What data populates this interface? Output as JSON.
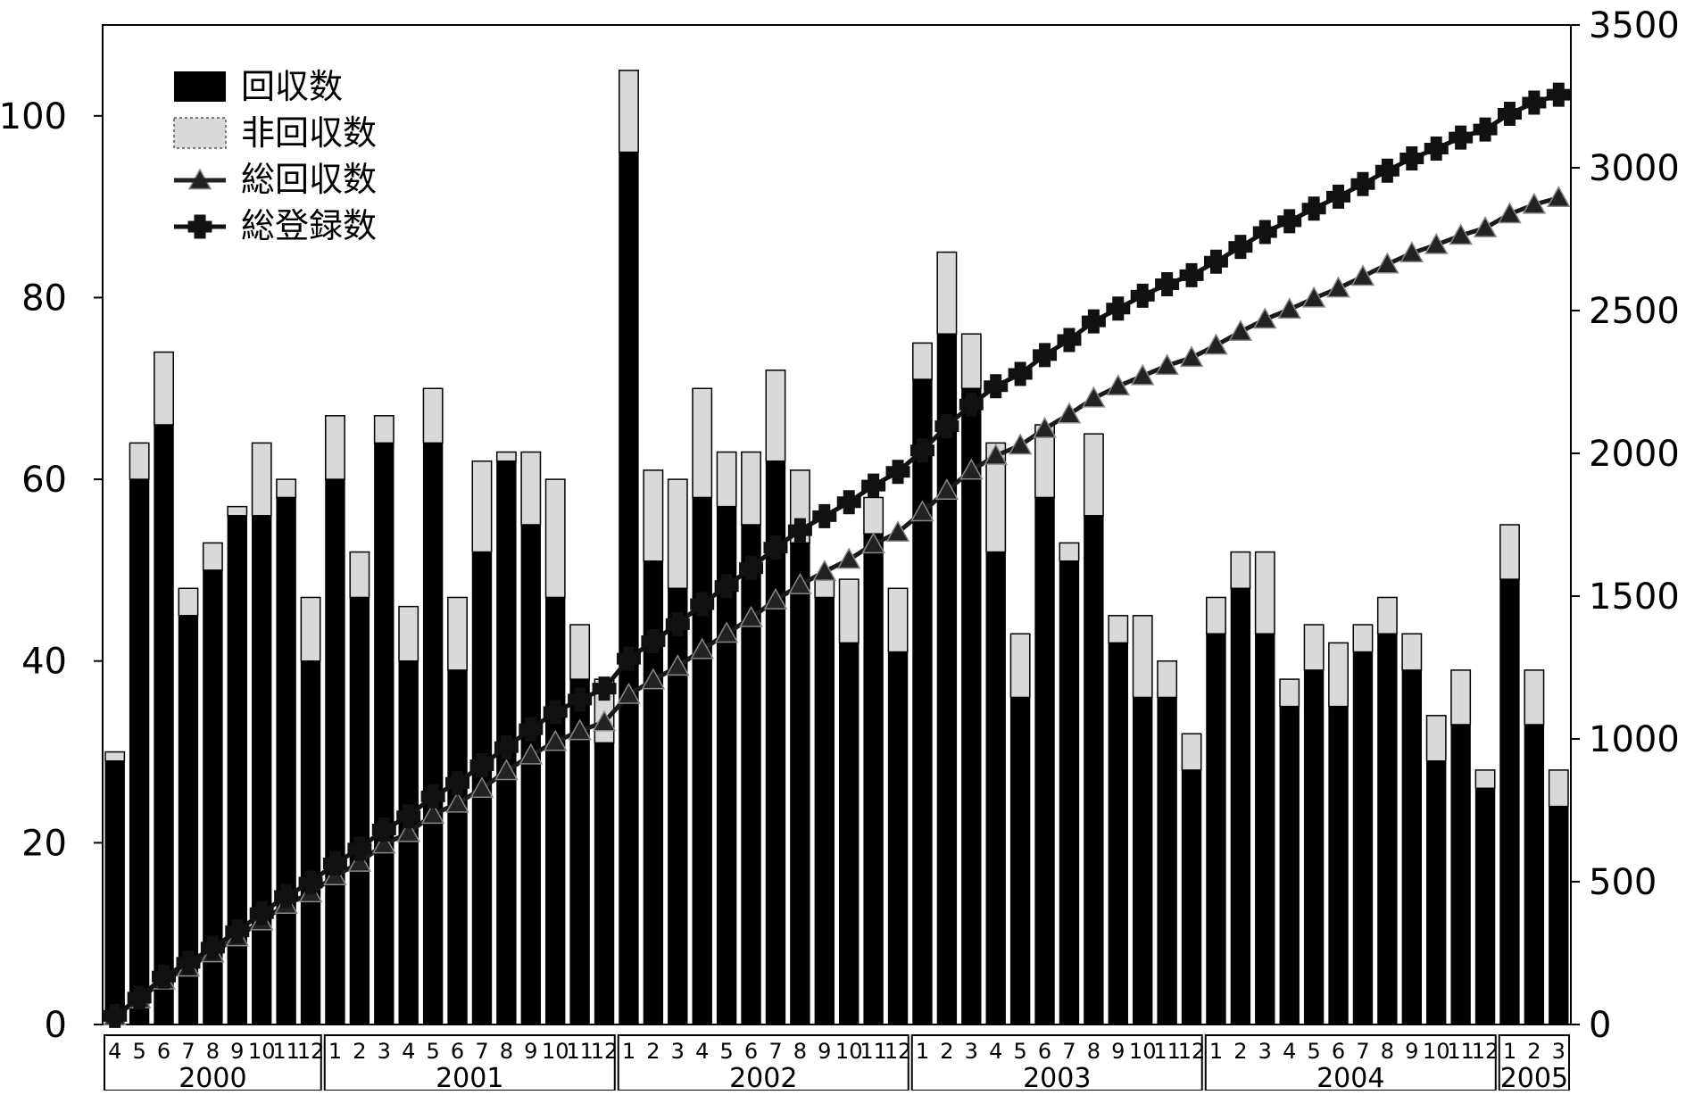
{
  "chart_data": {
    "type": "combo",
    "categories": [
      "4",
      "5",
      "6",
      "7",
      "8",
      "9",
      "10",
      "11",
      "12",
      "1",
      "2",
      "3",
      "4",
      "5",
      "6",
      "7",
      "8",
      "9",
      "10",
      "11",
      "12",
      "1",
      "2",
      "3",
      "4",
      "5",
      "6",
      "7",
      "8",
      "9",
      "10",
      "11",
      "12",
      "1",
      "2",
      "3",
      "4",
      "5",
      "6",
      "7",
      "8",
      "9",
      "10",
      "11",
      "12",
      "1",
      "2",
      "3",
      "4",
      "5",
      "6",
      "7",
      "8",
      "9",
      "10",
      "11",
      "12",
      "1",
      "2",
      "3"
    ],
    "year_groups": [
      {
        "label": "2000",
        "count": 9
      },
      {
        "label": "2001",
        "count": 12
      },
      {
        "label": "2002",
        "count": 12
      },
      {
        "label": "2003",
        "count": 12
      },
      {
        "label": "2004",
        "count": 12
      },
      {
        "label": "2005",
        "count": 3
      }
    ],
    "series": [
      {
        "name": "回収数",
        "type": "bar",
        "stack": "s",
        "axis": "left",
        "color": "#000000",
        "values": [
          29,
          60,
          66,
          45,
          50,
          56,
          56,
          58,
          40,
          60,
          47,
          64,
          40,
          64,
          39,
          52,
          62,
          55,
          47,
          38,
          31,
          96,
          51,
          48,
          58,
          57,
          55,
          62,
          53,
          47,
          42,
          54,
          41,
          71,
          76,
          70,
          52,
          36,
          58,
          51,
          56,
          42,
          36,
          36,
          28,
          43,
          48,
          43,
          35,
          39,
          35,
          41,
          43,
          39,
          29,
          33,
          26,
          49,
          33,
          24
        ]
      },
      {
        "name": "非回収数",
        "type": "bar",
        "stack": "s",
        "axis": "left",
        "color": "#d9d9d9",
        "values": [
          1,
          4,
          8,
          3,
          3,
          1,
          8,
          2,
          7,
          7,
          5,
          3,
          6,
          6,
          8,
          10,
          1,
          8,
          13,
          6,
          7,
          9,
          10,
          12,
          12,
          6,
          8,
          10,
          8,
          2,
          7,
          4,
          7,
          4,
          9,
          6,
          12,
          7,
          8,
          2,
          9,
          3,
          9,
          4,
          4,
          4,
          4,
          9,
          3,
          5,
          7,
          3,
          4,
          4,
          5,
          6,
          2,
          6,
          6,
          4
        ]
      },
      {
        "name": "総回収数",
        "type": "line",
        "axis": "right",
        "marker": "triangle",
        "color": "#1a1a1a",
        "values": [
          29,
          89,
          155,
          200,
          250,
          306,
          362,
          420,
          460,
          520,
          567,
          631,
          671,
          735,
          774,
          826,
          888,
          943,
          990,
          1028,
          1059,
          1155,
          1206,
          1254,
          1312,
          1369,
          1424,
          1486,
          1539,
          1586,
          1628,
          1682,
          1723,
          1794,
          1870,
          1940,
          1992,
          2028,
          2086,
          2137,
          2193,
          2235,
          2271,
          2307,
          2335,
          2378,
          2426,
          2469,
          2504,
          2543,
          2578,
          2619,
          2662,
          2701,
          2730,
          2763,
          2789,
          2838,
          2871,
          2895
        ]
      },
      {
        "name": "総登録数",
        "type": "line",
        "axis": "right",
        "marker": "cross",
        "color": "#111111",
        "values": [
          30,
          94,
          168,
          216,
          269,
          326,
          390,
          450,
          497,
          564,
          616,
          683,
          729,
          799,
          846,
          908,
          971,
          1034,
          1094,
          1138,
          1176,
          1281,
          1342,
          1402,
          1472,
          1535,
          1598,
          1670,
          1731,
          1780,
          1829,
          1887,
          1935,
          2010,
          2095,
          2171,
          2235,
          2278,
          2344,
          2397,
          2462,
          2507,
          2552,
          2592,
          2624,
          2671,
          2723,
          2775,
          2813,
          2857,
          2899,
          2943,
          2990,
          3033,
          3067,
          3106,
          3134,
          3189,
          3228,
          3256
        ]
      }
    ],
    "y_left": {
      "min": 0,
      "max": 110,
      "ticks": [
        0,
        20,
        40,
        60,
        80,
        100
      ]
    },
    "y_right": {
      "min": 0,
      "max": 3500,
      "ticks": [
        0,
        500,
        1000,
        1500,
        2000,
        2500,
        3000,
        3500
      ]
    },
    "legend_position": "top-left",
    "grid": false
  }
}
